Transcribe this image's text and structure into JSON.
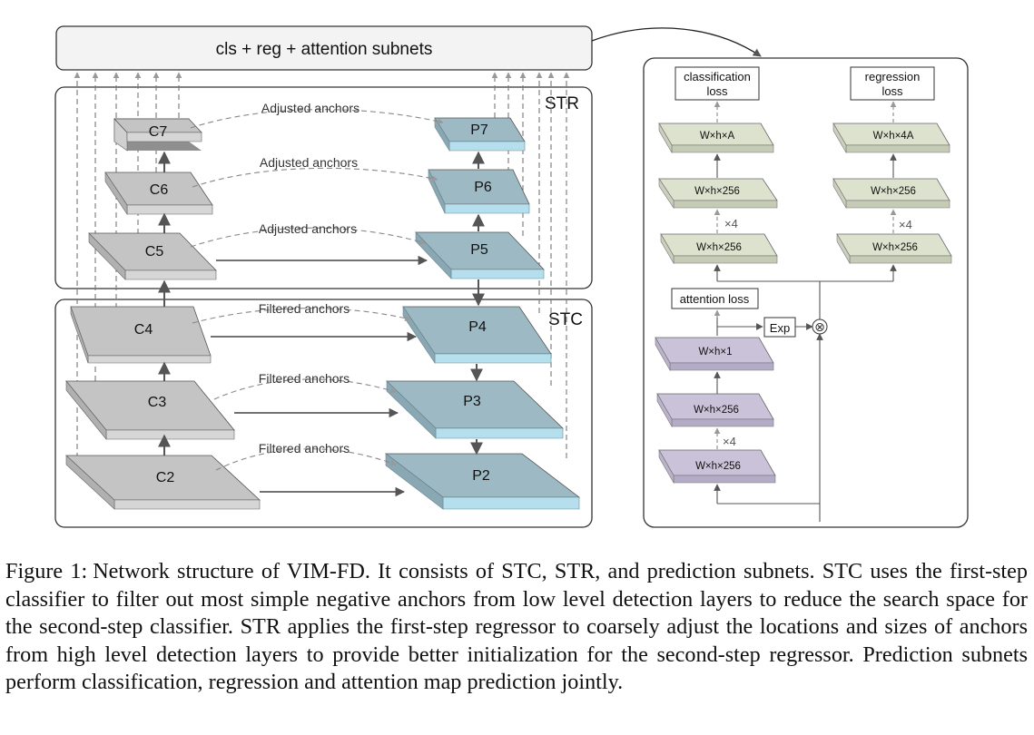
{
  "header": {
    "label": "cls + reg + attention subnets"
  },
  "regions": {
    "str": "STR",
    "stc": "STC"
  },
  "backbone": {
    "c7": "C7",
    "c6": "C6",
    "c5": "C5",
    "c4": "C4",
    "c3": "C3",
    "c2": "C2"
  },
  "pyramid": {
    "p7": "P7",
    "p6": "P6",
    "p5": "P5",
    "p4": "P4",
    "p3": "P3",
    "p2": "P2"
  },
  "connections": {
    "adjusted_anchors": "Adjusted anchors",
    "filtered_anchors": "Filtered anchors"
  },
  "subnets": {
    "classification_loss": [
      "classification",
      "loss"
    ],
    "regression_loss": [
      "regression",
      "loss"
    ],
    "attention_loss": "attention loss",
    "exp": "Exp",
    "multiply": "⊗",
    "cls_out": "W×h×A",
    "cls_mid": "W×h×256",
    "cls_in": "W×h×256",
    "reg_out": "W×h×4A",
    "reg_mid": "W×h×256",
    "reg_in": "W×h×256",
    "att_out": "W×h×1",
    "att_mid": "W×h×256",
    "att_in": "W×h×256",
    "repeat": "×4"
  },
  "colors": {
    "backbone_top": "#c3c3c3",
    "pyramid_top": "#9cb9c4",
    "pyramid_side": "#b5dfec",
    "cls_reg_top": "#dde2cf",
    "attention_top": "#cac2d8"
  },
  "caption": {
    "prefix": "Figure 1:",
    "text": "Network structure of VIM-FD. It consists of STC, STR, and prediction subnets. STC uses the first-step classifier to filter out most simple negative anchors from low level detection layers to reduce the search space for the second-step classifier. STR applies the first-step regressor to coarsely adjust the locations and sizes of anchors from high level detection layers to provide better initialization for the second-step regressor. Prediction subnets perform classification, regression and attention map prediction jointly."
  }
}
